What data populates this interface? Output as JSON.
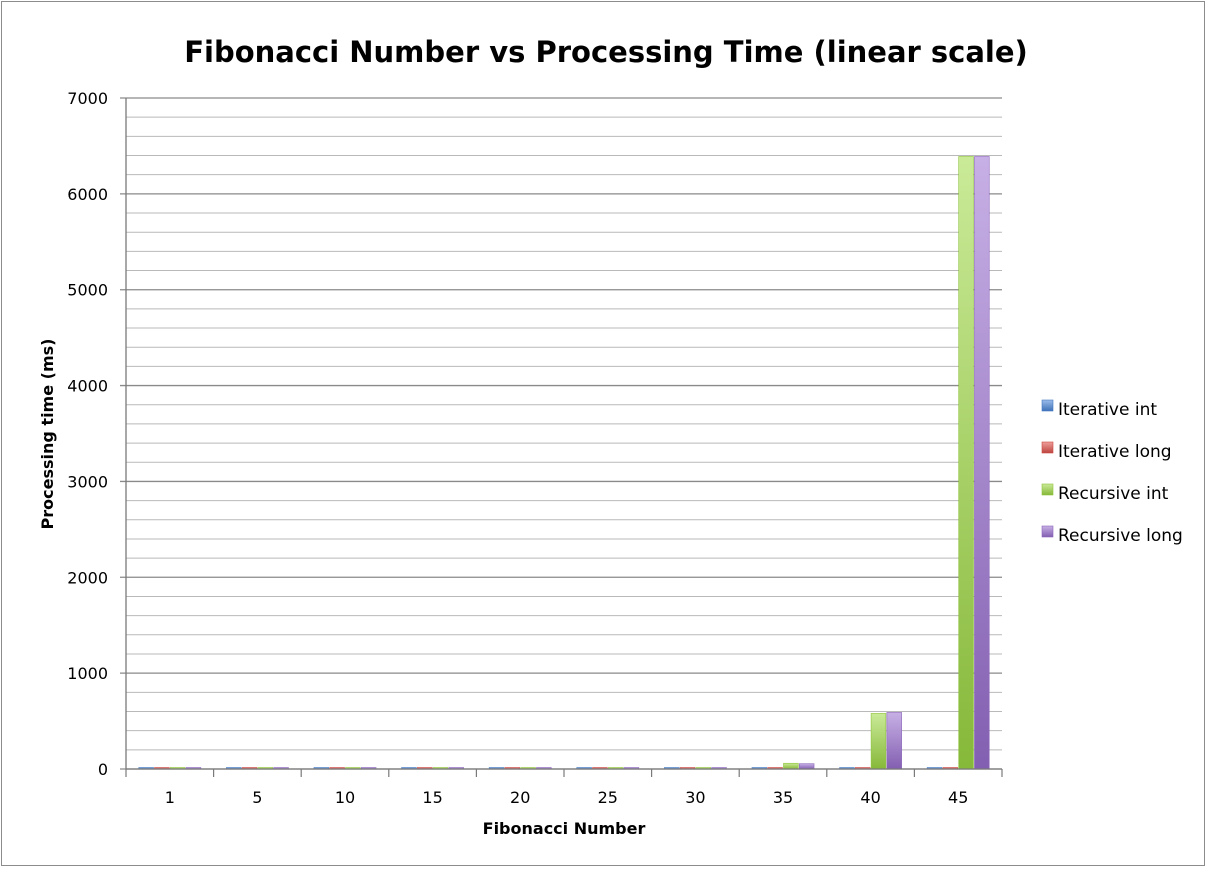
{
  "chart_data": {
    "type": "bar",
    "title": "Fibonacci Number vs Processing Time (linear scale)",
    "xlabel": "Fibonacci Number",
    "ylabel": "Processing time (ms)",
    "categories": [
      "1",
      "5",
      "10",
      "15",
      "20",
      "25",
      "30",
      "35",
      "40",
      "45"
    ],
    "ylim": [
      0,
      7000
    ],
    "y_major_ticks": [
      0,
      1000,
      2000,
      3000,
      4000,
      5000,
      6000,
      7000
    ],
    "y_minor_step": 200,
    "grid": true,
    "legend_position": "right",
    "series": [
      {
        "name": "Iterative int",
        "color": "#4a86d8",
        "values": [
          0,
          0,
          0,
          0,
          0,
          0,
          0,
          0,
          0,
          0
        ]
      },
      {
        "name": "Iterative long",
        "color": "#e0504a",
        "values": [
          0,
          0,
          0,
          0,
          0,
          0,
          0,
          0,
          0,
          0
        ]
      },
      {
        "name": "Recursive int",
        "color": "#9ed943",
        "values": [
          0,
          0,
          0,
          1,
          1,
          3,
          10,
          60,
          580,
          6390
        ]
      },
      {
        "name": "Recursive long",
        "color": "#9a70d0",
        "values": [
          0,
          0,
          0,
          1,
          2,
          6,
          15,
          55,
          590,
          6390
        ]
      }
    ]
  }
}
